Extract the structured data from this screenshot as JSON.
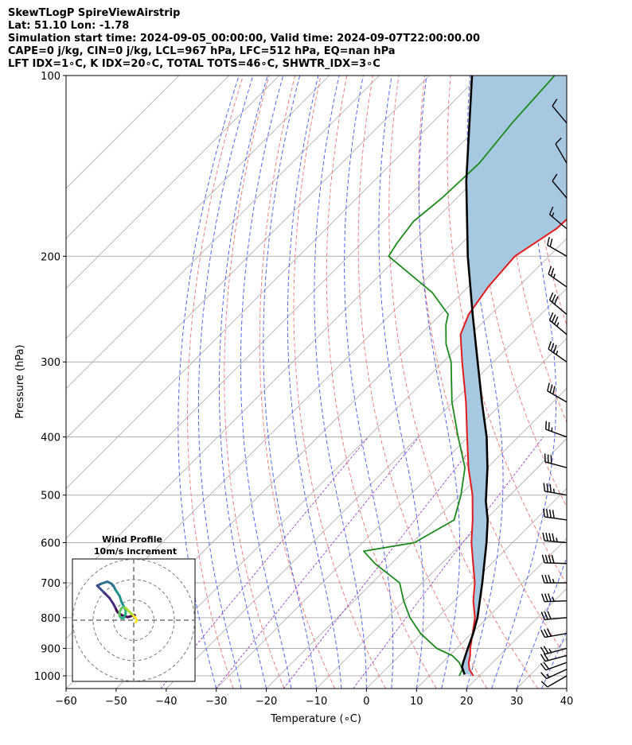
{
  "header": {
    "line1": "SkewTLogP SpireViewAirstrip",
    "line2": "Lat: 51.10   Lon: -1.78",
    "line3": "Simulation start time: 2024-09-05_00:00:00, Valid time: 2024-09-07T22:00:00.00",
    "line4": "CAPE=0 j/kg, CIN=0 j/kg, LCL=967 hPa, LFC=512 hPa, EQ=nan hPa",
    "line5": "LFT IDX=1∘C, K IDX=20∘C, TOTAL TOTS=46∘C, SHWTR_IDX=3∘C"
  },
  "chart_data": [
    {
      "type": "line",
      "subtype": "skew-t log-p",
      "xlabel": "Temperature (∘C)",
      "ylabel": "Pressure (hPa)",
      "xlim": [
        -60,
        40
      ],
      "ylim": [
        1050,
        100
      ],
      "y_scale": "log",
      "skew": true,
      "grid": true,
      "x_ticks": [
        "−60",
        "−50",
        "−40",
        "−30",
        "−20",
        "−10",
        "0",
        "10",
        "20",
        "30",
        "40"
      ],
      "y_ticks": [
        "100",
        "200",
        "300",
        "400",
        "500",
        "600",
        "700",
        "800",
        "900",
        "1000"
      ],
      "colors": {
        "temperature": "#e31a1c",
        "dewpoint": "#1a8a1a",
        "parcel": "#000000",
        "cape_fill": "#a6c8e0",
        "dry_adiabats": "#f08080",
        "moist_adiabats": "#5566ee",
        "mixing_ratio": "#9a40c8",
        "isotherms": "#aaaaaa"
      },
      "series": [
        {
          "key": "temperature",
          "pressure": [
            1000,
            975,
            950,
            925,
            900,
            850,
            800,
            750,
            700,
            650,
            600,
            550,
            500,
            450,
            400,
            350,
            300,
            270,
            250,
            225,
            200,
            180,
            160,
            140,
            120,
            100
          ],
          "values": [
            18.8,
            16.7,
            15.2,
            14.1,
            12.7,
            10.2,
            7.5,
            3.8,
            0.5,
            -3.7,
            -8.2,
            -12.5,
            -17.5,
            -23.8,
            -30.2,
            -37.4,
            -46.2,
            -52.0,
            -54.4,
            -56.0,
            -56.8,
            -54.0,
            -53.4,
            -54.5,
            -55.3,
            -57.5
          ]
        },
        {
          "key": "dewpoint",
          "pressure": [
            1000,
            975,
            950,
            925,
            900,
            850,
            800,
            750,
            700,
            650,
            620,
            600,
            550,
            500,
            450,
            400,
            350,
            300,
            280,
            260,
            250,
            230,
            200,
            190,
            175,
            160,
            140,
            120,
            100
          ],
          "values": [
            16.0,
            15.3,
            13.3,
            10.5,
            6.0,
            -0.2,
            -5.5,
            -10.1,
            -14.5,
            -23.3,
            -28.0,
            -19.6,
            -16.2,
            -19.8,
            -24.5,
            -32.0,
            -40.2,
            -48.4,
            -53.0,
            -56.9,
            -58.5,
            -66.0,
            -82.0,
            -83.0,
            -84.0,
            -83.0,
            -82.5,
            -84.0,
            -85.0
          ]
        },
        {
          "key": "parcel",
          "pressure": [
            995,
            967,
            950,
            900,
            850,
            800,
            700,
            600,
            550,
            512,
            450,
            400,
            350,
            300,
            250,
            200,
            150,
            100
          ],
          "values": [
            16.8,
            14.8,
            14.1,
            12.2,
            10.3,
            8.0,
            2.0,
            -5.2,
            -9.5,
            -13.6,
            -20.0,
            -26.3,
            -34.2,
            -43.1,
            -53.6,
            -66.2,
            -81.5,
            -101.5
          ]
        }
      ],
      "inset": {
        "type": "hodograph",
        "title": "Wind Profile",
        "subtitle": "10m/s increment",
        "rings_ms": [
          10,
          20,
          30
        ],
        "u": [
          0.5,
          -3,
          -6,
          -8,
          -9,
          -10,
          -12,
          -14,
          -15,
          -16,
          -17,
          -18,
          -16,
          -13,
          -11,
          -10,
          -9,
          -7,
          -6,
          -5,
          -4,
          -4,
          -5,
          -6,
          -7,
          -7,
          -6,
          -5,
          -4,
          -3,
          -2,
          -1,
          0,
          1,
          1.5,
          1
        ],
        "v": [
          2.5,
          1.5,
          2.5,
          4,
          6,
          8,
          11,
          13,
          14,
          15,
          16,
          17,
          18,
          19,
          18,
          17,
          15,
          12,
          9,
          7,
          5,
          3,
          1,
          1,
          2,
          4,
          6,
          6.5,
          6,
          5,
          4,
          3,
          2,
          1,
          0,
          -1
        ]
      },
      "wind_barbs": {
        "pressure": [
          1000,
          975,
          950,
          925,
          900,
          850,
          800,
          750,
          700,
          650,
          600,
          550,
          500,
          450,
          400,
          350,
          300,
          270,
          250,
          225,
          200,
          180,
          160,
          140,
          120
        ],
        "dir_deg": [
          240,
          245,
          250,
          255,
          255,
          260,
          265,
          268,
          270,
          272,
          275,
          278,
          280,
          285,
          290,
          300,
          305,
          310,
          310,
          305,
          300,
          310,
          320,
          330,
          320
        ],
        "speed_kt": [
          10,
          15,
          20,
          20,
          25,
          30,
          30,
          35,
          35,
          40,
          45,
          40,
          35,
          30,
          25,
          30,
          35,
          35,
          30,
          25,
          20,
          15,
          10,
          10,
          10
        ]
      }
    }
  ]
}
